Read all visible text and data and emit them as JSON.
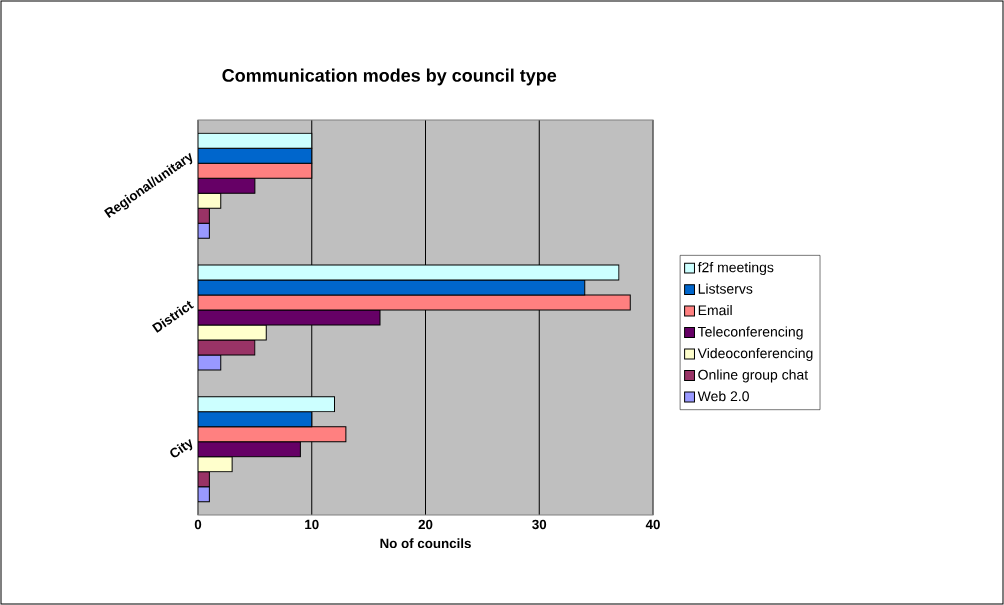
{
  "chart_data": {
    "type": "bar",
    "orientation": "horizontal",
    "title": "Communication modes by council type",
    "xlabel": "No of councils",
    "categories": [
      "Regional/unitary",
      "District",
      "City"
    ],
    "series": [
      {
        "name": "f2f meetings",
        "color": "#ccffff",
        "values": [
          10,
          37,
          12
        ]
      },
      {
        "name": "Listservs",
        "color": "#0066cc",
        "values": [
          10,
          34,
          10
        ]
      },
      {
        "name": "Email",
        "color": "#ff8080",
        "values": [
          10,
          38,
          13
        ]
      },
      {
        "name": "Teleconferencing",
        "color": "#660066",
        "values": [
          5,
          16,
          9
        ]
      },
      {
        "name": "Videoconferencing",
        "color": "#ffffcc",
        "values": [
          2,
          6,
          3
        ]
      },
      {
        "name": "Online group chat",
        "color": "#993366",
        "values": [
          1,
          5,
          1
        ]
      },
      {
        "name": "Web 2.0",
        "color": "#9999ff",
        "values": [
          1,
          2,
          1
        ]
      }
    ],
    "xlim": [
      0,
      40
    ],
    "xticks": [
      0,
      10,
      20,
      30,
      40
    ],
    "grid": "x",
    "legend": "right"
  }
}
